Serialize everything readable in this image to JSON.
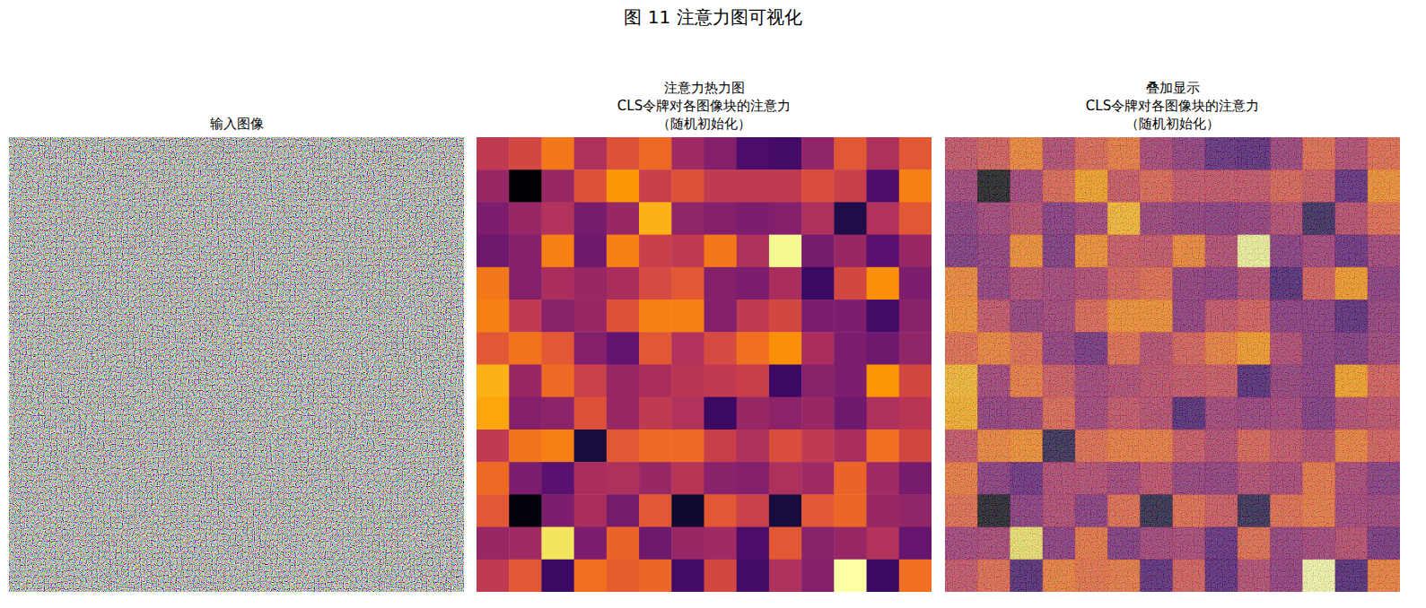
{
  "chart_data": {
    "type": "heatmap",
    "title": "图 11 注意力图可视化",
    "tick_labels": false,
    "panel_titles": [
      [
        "输入图像"
      ],
      [
        "注意力热力图",
        "CLS令牌对各图像块的注意力",
        "（随机初始化）"
      ],
      [
        "叠加显示",
        "CLS令牌对各图像块的注意力",
        "（随机初始化）"
      ]
    ],
    "cells": [
      [
        0.5,
        0.55,
        0.68,
        0.45,
        0.58,
        0.65,
        0.42,
        0.35,
        0.22,
        0.2,
        0.38,
        0.6,
        0.45,
        0.6
      ],
      [
        0.4,
        0.0,
        0.4,
        0.58,
        0.75,
        0.52,
        0.58,
        0.5,
        0.5,
        0.5,
        0.57,
        0.52,
        0.22,
        0.7
      ],
      [
        0.33,
        0.4,
        0.46,
        0.32,
        0.4,
        0.8,
        0.38,
        0.35,
        0.33,
        0.35,
        0.45,
        0.12,
        0.46,
        0.6
      ],
      [
        0.3,
        0.35,
        0.7,
        0.3,
        0.7,
        0.52,
        0.5,
        0.68,
        0.45,
        0.95,
        0.32,
        0.4,
        0.25,
        0.4
      ],
      [
        0.68,
        0.35,
        0.44,
        0.4,
        0.44,
        0.56,
        0.6,
        0.35,
        0.33,
        0.44,
        0.18,
        0.55,
        0.73,
        0.33
      ],
      [
        0.7,
        0.5,
        0.36,
        0.4,
        0.58,
        0.7,
        0.7,
        0.35,
        0.5,
        0.55,
        0.33,
        0.33,
        0.2,
        0.36
      ],
      [
        0.6,
        0.67,
        0.6,
        0.35,
        0.27,
        0.6,
        0.46,
        0.56,
        0.66,
        0.73,
        0.44,
        0.33,
        0.3,
        0.38
      ],
      [
        0.8,
        0.4,
        0.65,
        0.53,
        0.4,
        0.44,
        0.48,
        0.5,
        0.52,
        0.18,
        0.36,
        0.33,
        0.75,
        0.55
      ],
      [
        0.78,
        0.35,
        0.37,
        0.58,
        0.4,
        0.5,
        0.46,
        0.18,
        0.4,
        0.37,
        0.4,
        0.3,
        0.45,
        0.48
      ],
      [
        0.5,
        0.67,
        0.7,
        0.1,
        0.6,
        0.65,
        0.65,
        0.52,
        0.45,
        0.57,
        0.5,
        0.44,
        0.66,
        0.55
      ],
      [
        0.65,
        0.33,
        0.25,
        0.44,
        0.45,
        0.4,
        0.48,
        0.36,
        0.35,
        0.45,
        0.42,
        0.63,
        0.42,
        0.32
      ],
      [
        0.6,
        0.02,
        0.33,
        0.44,
        0.32,
        0.6,
        0.08,
        0.6,
        0.53,
        0.1,
        0.6,
        0.64,
        0.4,
        0.38
      ],
      [
        0.4,
        0.42,
        0.9,
        0.33,
        0.63,
        0.3,
        0.4,
        0.42,
        0.22,
        0.6,
        0.36,
        0.4,
        0.46,
        0.28
      ],
      [
        0.5,
        0.6,
        0.18,
        0.66,
        0.62,
        0.64,
        0.2,
        0.55,
        0.2,
        0.45,
        0.35,
        0.97,
        0.18,
        0.66
      ]
    ]
  }
}
